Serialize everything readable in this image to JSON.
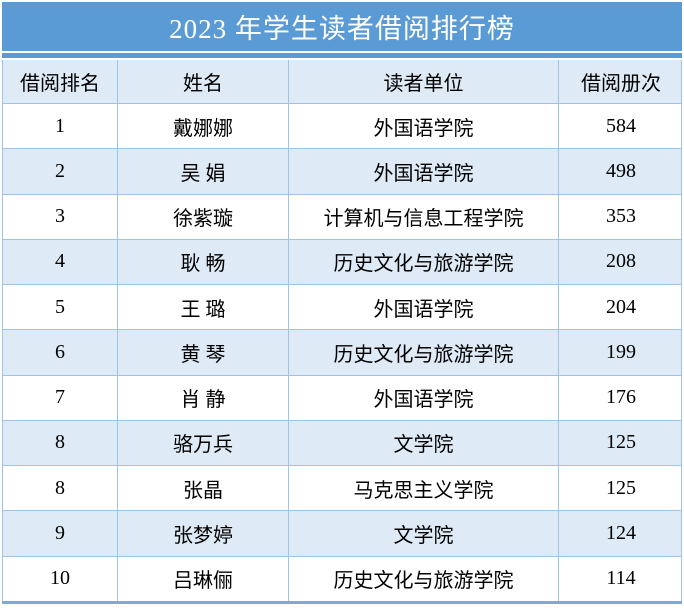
{
  "table": {
    "title": "2023 年学生读者借阅排行榜",
    "columns": [
      {
        "key": "rank",
        "label": "借阅排名"
      },
      {
        "key": "name",
        "label": "姓名"
      },
      {
        "key": "unit",
        "label": "读者单位"
      },
      {
        "key": "count",
        "label": "借阅册次"
      }
    ],
    "rows": [
      {
        "rank": "1",
        "name": "戴娜娜",
        "unit": "外国语学院",
        "count": "584"
      },
      {
        "rank": "2",
        "name": "吴 娟",
        "unit": "外国语学院",
        "count": "498"
      },
      {
        "rank": "3",
        "name": "徐紫璇",
        "unit": "计算机与信息工程学院",
        "count": "353"
      },
      {
        "rank": "4",
        "name": "耿 畅",
        "unit": "历史文化与旅游学院",
        "count": "208"
      },
      {
        "rank": "5",
        "name": "王 璐",
        "unit": "外国语学院",
        "count": "204"
      },
      {
        "rank": "6",
        "name": "黄 琴",
        "unit": "历史文化与旅游学院",
        "count": "199"
      },
      {
        "rank": "7",
        "name": "肖 静",
        "unit": "外国语学院",
        "count": "176"
      },
      {
        "rank": "8",
        "name": "骆万兵",
        "unit": "文学院",
        "count": "125"
      },
      {
        "rank": "8",
        "name": "张晶",
        "unit": "马克思主义学院",
        "count": "125"
      },
      {
        "rank": "9",
        "name": "张梦婷",
        "unit": "文学院",
        "count": "124"
      },
      {
        "rank": "10",
        "name": "吕琳俪",
        "unit": "历史文化与旅游学院",
        "count": "114"
      }
    ]
  },
  "colors": {
    "title_bar": "#5B9BD5",
    "row_alt": "#DEEAF6",
    "border": "#9DC3E6",
    "bottom_line": "#7FA8D9",
    "title_text": "#FFFFFF",
    "body_text": "#000000"
  }
}
